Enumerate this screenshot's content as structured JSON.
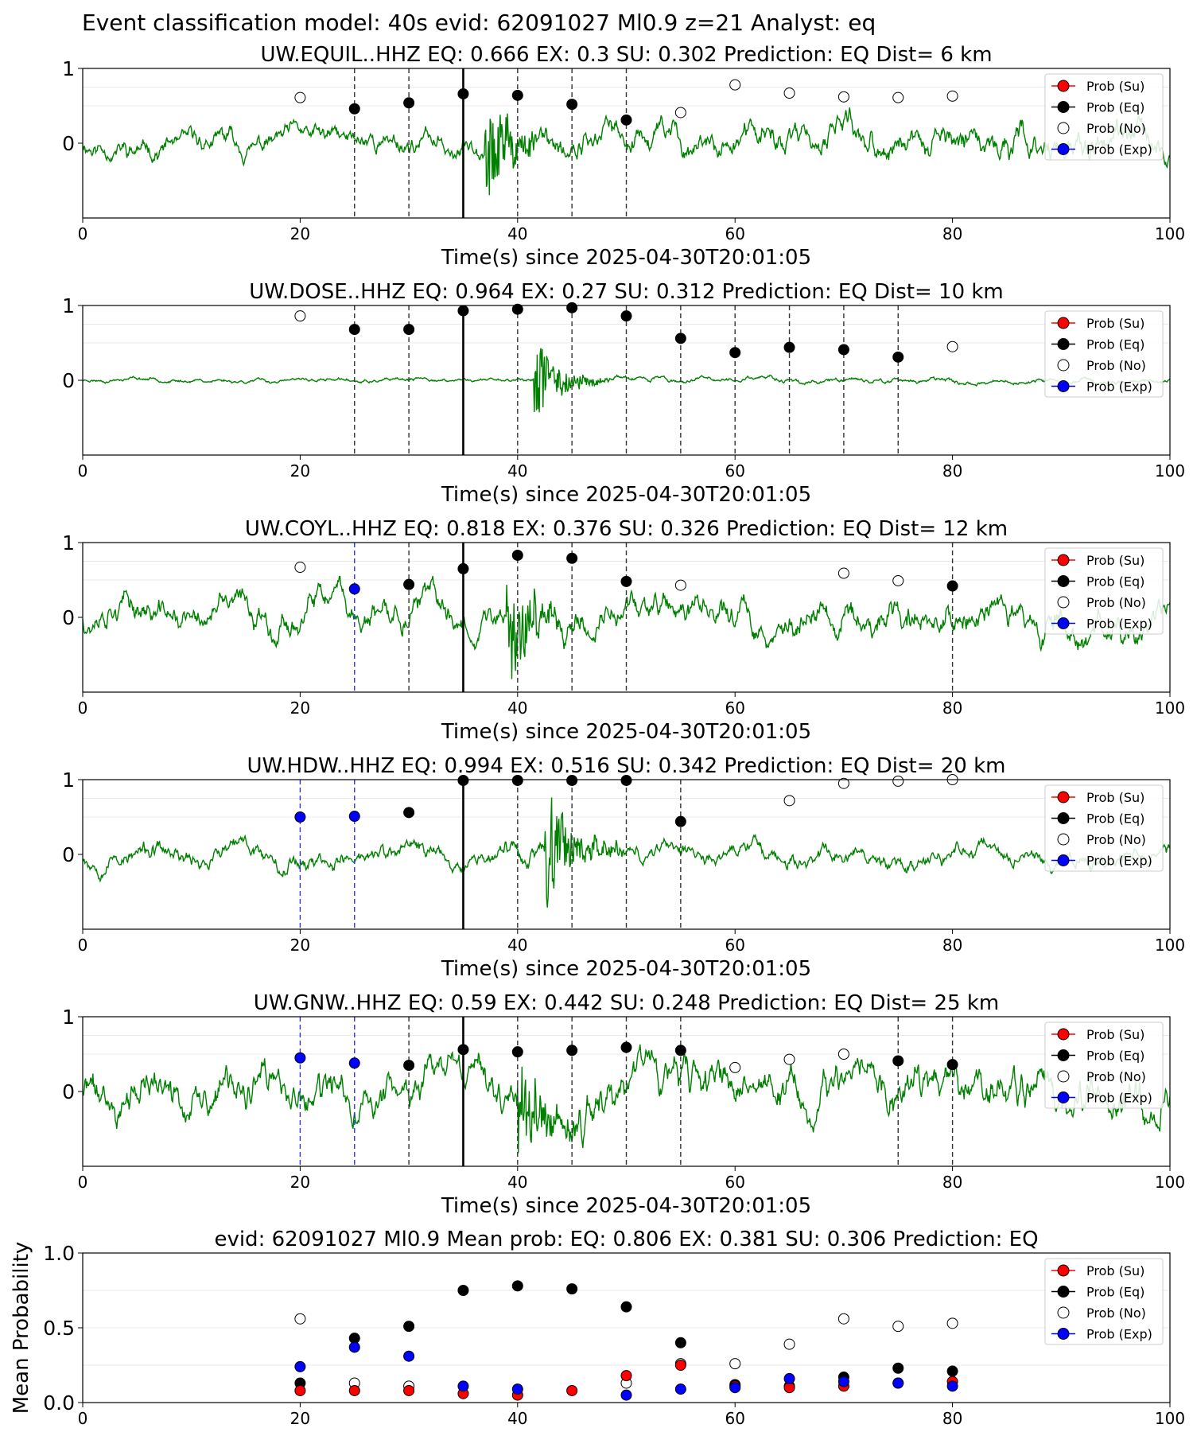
{
  "figure_title": "Event classification model: 40s evid: 62091027 Ml0.9 z=21 Analyst: eq",
  "colors": {
    "waveform": "#008000",
    "prob_su": "#ff0000",
    "prob_eq": "#000000",
    "prob_no": "#ffffff",
    "prob_exp": "#0000ff",
    "eq_marker_line": "#333333",
    "exp_marker_line": "#3333ff",
    "pick_line": "#000000"
  },
  "legend_labels": [
    "Prob (Su)",
    "Prob (Eq)",
    "Prob (No)",
    "Prob (Exp)"
  ],
  "chart_data": [
    {
      "type": "line",
      "title": "UW.EQUIL..HHZ   EQ: 0.666  EX: 0.3  SU: 0.302   Prediction: EQ    Dist= 6 km",
      "xlabel": "Time(s) since 2025-04-30T20:01:05",
      "ylabel": "",
      "xlim": [
        0,
        100
      ],
      "ylim": [
        -1,
        1
      ],
      "xticks": [
        0,
        20,
        40,
        60,
        80,
        100
      ],
      "yticks": [
        0,
        1
      ],
      "legend": "top-right",
      "waveform": {
        "amplitude_before": 0.22,
        "amplitude_after": 0.3,
        "event_onset": 37,
        "burst_peak": 0.7,
        "seed": 11
      },
      "pick_time": 35,
      "eq_windows": [
        25,
        30,
        40,
        45,
        50
      ],
      "exp_windows": [],
      "x": [
        20,
        25,
        30,
        35,
        40,
        45,
        50,
        55,
        60,
        65,
        70,
        75,
        80
      ],
      "series": [
        {
          "name": "Prob (Eq)",
          "y": [
            null,
            0.46,
            0.54,
            0.66,
            0.64,
            0.52,
            0.31,
            null,
            null,
            null,
            null,
            null,
            null
          ]
        },
        {
          "name": "Prob (No)",
          "y": [
            0.61,
            null,
            null,
            null,
            null,
            null,
            null,
            0.41,
            0.78,
            0.67,
            0.62,
            0.61,
            0.63
          ]
        }
      ]
    },
    {
      "type": "line",
      "title": "UW.DOSE..HHZ   EQ: 0.964  EX: 0.27  SU: 0.312   Prediction: EQ    Dist= 10 km",
      "xlabel": "Time(s) since 2025-04-30T20:01:05",
      "ylabel": "",
      "xlim": [
        0,
        100
      ],
      "ylim": [
        -1,
        1
      ],
      "xticks": [
        0,
        20,
        40,
        60,
        80,
        100
      ],
      "yticks": [
        0,
        1
      ],
      "legend": "top-right",
      "waveform": {
        "amplitude_before": 0.04,
        "amplitude_after": 0.05,
        "event_onset": 41.5,
        "burst_peak": 0.6,
        "seed": 23
      },
      "pick_time": 35,
      "eq_windows": [
        25,
        30,
        40,
        45,
        50,
        55,
        60,
        65,
        70,
        75
      ],
      "exp_windows": [],
      "x": [
        20,
        25,
        30,
        35,
        40,
        45,
        50,
        55,
        60,
        65,
        70,
        75,
        80
      ],
      "series": [
        {
          "name": "Prob (Eq)",
          "y": [
            null,
            0.68,
            0.68,
            0.93,
            0.95,
            0.97,
            0.86,
            0.56,
            0.37,
            0.44,
            0.41,
            0.31,
            null
          ]
        },
        {
          "name": "Prob (No)",
          "y": [
            0.86,
            null,
            null,
            null,
            null,
            null,
            null,
            null,
            null,
            null,
            null,
            null,
            0.45
          ]
        }
      ]
    },
    {
      "type": "line",
      "title": "UW.COYL..HHZ   EQ: 0.818  EX: 0.376  SU: 0.326   Prediction: EQ    Dist= 12 km",
      "xlabel": "Time(s) since 2025-04-30T20:01:05",
      "ylabel": "",
      "xlim": [
        0,
        100
      ],
      "ylim": [
        -1,
        1
      ],
      "xticks": [
        0,
        20,
        40,
        60,
        80,
        100
      ],
      "yticks": [
        0,
        1
      ],
      "legend": "top-right",
      "waveform": {
        "amplitude_before": 0.3,
        "amplitude_after": 0.32,
        "event_onset": 39,
        "burst_peak": 0.75,
        "seed": 37
      },
      "pick_time": 35,
      "eq_windows": [
        30,
        40,
        45,
        50,
        80
      ],
      "exp_windows": [
        25
      ],
      "x": [
        20,
        25,
        30,
        35,
        40,
        45,
        50,
        55,
        60,
        65,
        70,
        75,
        80
      ],
      "series": [
        {
          "name": "Prob (Eq)",
          "y": [
            null,
            null,
            0.44,
            0.65,
            0.83,
            0.79,
            0.48,
            null,
            null,
            null,
            null,
            null,
            0.42
          ]
        },
        {
          "name": "Prob (No)",
          "y": [
            0.67,
            null,
            null,
            null,
            null,
            null,
            null,
            0.43,
            null,
            null,
            0.59,
            0.49,
            null
          ]
        },
        {
          "name": "Prob (Exp)",
          "y": [
            null,
            0.38,
            null,
            null,
            null,
            null,
            null,
            null,
            null,
            null,
            null,
            null,
            null
          ]
        }
      ]
    },
    {
      "type": "line",
      "title": "UW.HDW..HHZ   EQ: 0.994  EX: 0.516  SU: 0.342   Prediction: EQ    Dist= 20 km",
      "xlabel": "Time(s) since 2025-04-30T20:01:05",
      "ylabel": "",
      "xlim": [
        0,
        100
      ],
      "ylim": [
        -1,
        1
      ],
      "xticks": [
        0,
        20,
        40,
        60,
        80,
        100
      ],
      "yticks": [
        0,
        1
      ],
      "legend": "top-right",
      "waveform": {
        "amplitude_before": 0.2,
        "amplitude_after": 0.18,
        "event_onset": 42.5,
        "burst_peak": 0.9,
        "seed": 53
      },
      "pick_time": 35,
      "eq_windows": [
        40,
        45,
        50,
        55
      ],
      "exp_windows": [
        20,
        25
      ],
      "x": [
        20,
        25,
        30,
        35,
        40,
        45,
        50,
        55,
        60,
        65,
        70,
        75,
        80
      ],
      "series": [
        {
          "name": "Prob (Eq)",
          "y": [
            null,
            null,
            0.56,
            0.99,
            0.99,
            0.99,
            0.99,
            0.44,
            null,
            null,
            null,
            null,
            null
          ]
        },
        {
          "name": "Prob (No)",
          "y": [
            null,
            null,
            null,
            null,
            null,
            null,
            null,
            null,
            null,
            0.72,
            0.95,
            0.98,
            1.0
          ]
        },
        {
          "name": "Prob (Exp)",
          "y": [
            0.5,
            0.51,
            null,
            null,
            null,
            null,
            null,
            null,
            null,
            null,
            null,
            null,
            null
          ]
        }
      ]
    },
    {
      "type": "line",
      "title": "UW.GNW..HHZ   EQ: 0.59  EX: 0.442  SU: 0.248   Prediction: EQ    Dist= 25 km",
      "xlabel": "Time(s) since 2025-04-30T20:01:05",
      "ylabel": "",
      "xlim": [
        0,
        100
      ],
      "ylim": [
        -1,
        1
      ],
      "xticks": [
        0,
        20,
        40,
        60,
        80,
        100
      ],
      "yticks": [
        0,
        1
      ],
      "legend": "top-right",
      "waveform": {
        "amplitude_before": 0.4,
        "amplitude_after": 0.42,
        "event_onset": 40,
        "burst_peak": 0.8,
        "seed": 71
      },
      "pick_time": 35,
      "eq_windows": [
        30,
        40,
        45,
        50,
        55,
        75,
        80
      ],
      "exp_windows": [
        20,
        25
      ],
      "x": [
        20,
        25,
        30,
        35,
        40,
        45,
        50,
        55,
        60,
        65,
        70,
        75,
        80
      ],
      "series": [
        {
          "name": "Prob (Eq)",
          "y": [
            null,
            null,
            0.35,
            0.56,
            0.53,
            0.55,
            0.59,
            0.55,
            null,
            null,
            null,
            0.41,
            0.36
          ]
        },
        {
          "name": "Prob (No)",
          "y": [
            null,
            null,
            null,
            null,
            null,
            null,
            null,
            null,
            0.32,
            0.43,
            0.5,
            null,
            null
          ]
        },
        {
          "name": "Prob (Exp)",
          "y": [
            0.45,
            0.38,
            null,
            null,
            null,
            null,
            null,
            null,
            null,
            null,
            null,
            null,
            null
          ]
        }
      ]
    },
    {
      "type": "scatter",
      "title": "evid: 62091027  Ml0.9   Mean prob:   EQ: 0.806  EX: 0.381  SU: 0.306   Prediction: EQ",
      "xlabel": "",
      "ylabel": "Mean Probability",
      "xlim": [
        0,
        100
      ],
      "ylim": [
        0,
        1
      ],
      "xticks": [
        0,
        20,
        40,
        60,
        80,
        100
      ],
      "yticks": [
        0.0,
        0.5,
        1.0
      ],
      "legend": "top-right",
      "x": [
        20,
        25,
        30,
        35,
        40,
        45,
        50,
        55,
        60,
        65,
        70,
        75,
        80
      ],
      "series": [
        {
          "name": "Prob (No)",
          "y": [
            0.56,
            0.13,
            0.11,
            null,
            null,
            null,
            0.13,
            0.26,
            0.26,
            0.39,
            0.56,
            0.51,
            0.53
          ]
        },
        {
          "name": "Prob (Eq)",
          "y": [
            0.13,
            0.43,
            0.51,
            0.75,
            0.78,
            0.76,
            0.64,
            0.4,
            0.12,
            0.11,
            0.17,
            0.23,
            0.21
          ]
        },
        {
          "name": "Prob (Su)",
          "y": [
            0.08,
            0.08,
            0.08,
            0.06,
            0.05,
            0.08,
            0.18,
            0.25,
            0.11,
            0.1,
            0.11,
            0.13,
            0.14
          ]
        },
        {
          "name": "Prob (Exp)",
          "y": [
            0.24,
            0.37,
            0.31,
            0.11,
            0.09,
            null,
            0.05,
            0.09,
            0.1,
            0.16,
            0.14,
            0.13,
            0.11
          ]
        }
      ]
    }
  ]
}
